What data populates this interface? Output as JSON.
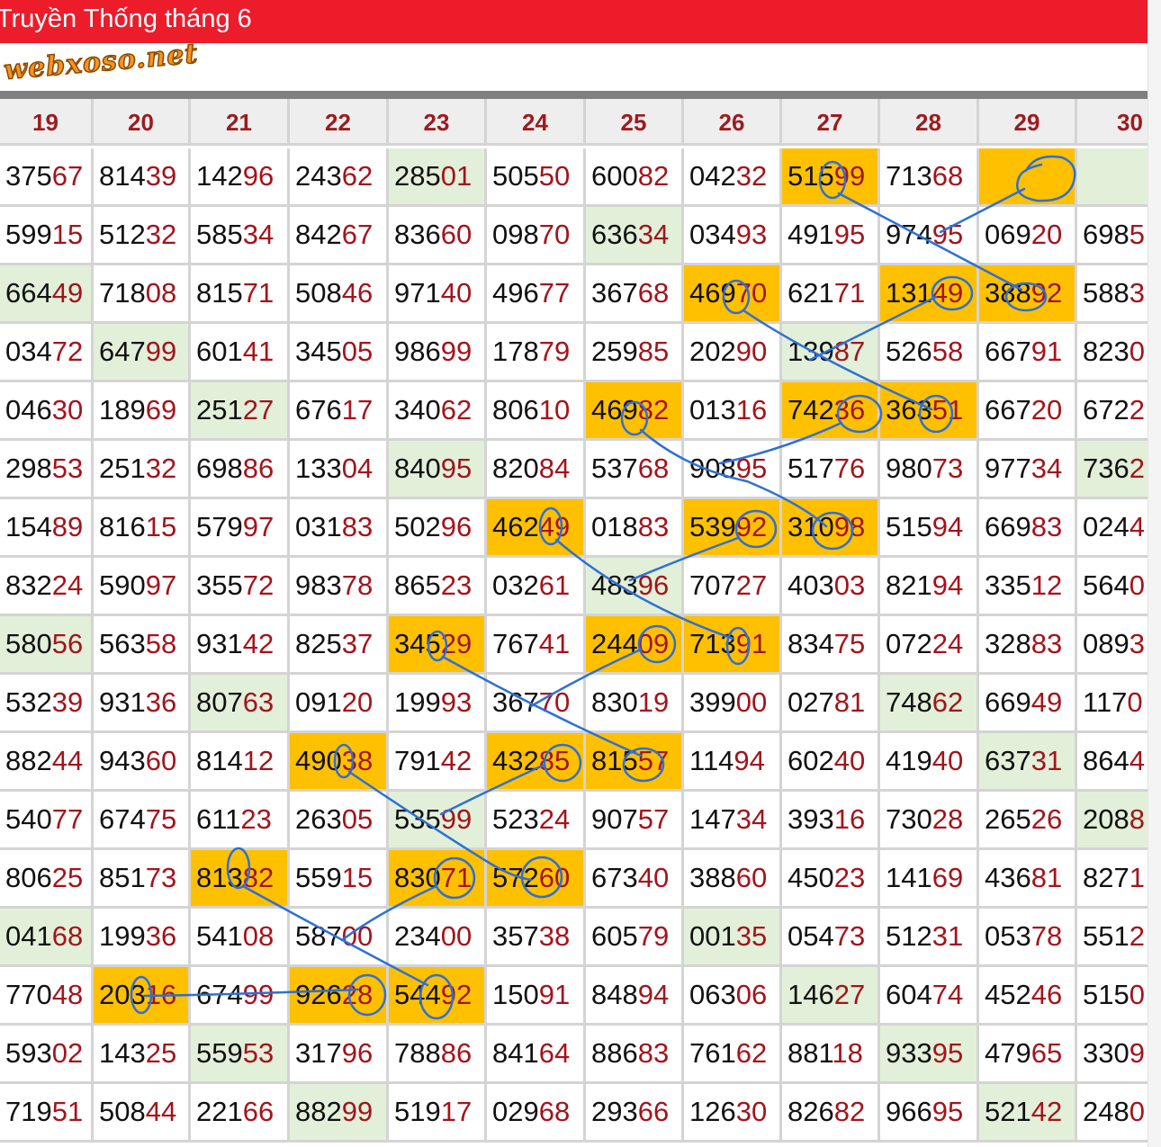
{
  "header": {
    "title": "Truyền Thống tháng 6",
    "watermark": "webxoso.net"
  },
  "colors": {
    "header_red": "#ec1c2b",
    "digit_red": "#a3141c",
    "highlight_orange": "#ffc000",
    "highlight_green": "#e2f0d9",
    "annotation_blue": "#2f6fd6"
  },
  "table": {
    "columns": [
      "19",
      "20",
      "21",
      "22",
      "23",
      "24",
      "25",
      "26",
      "27",
      "28",
      "29",
      "30"
    ],
    "rows": [
      [
        "37567",
        "81439",
        "14296",
        "24362",
        "28501",
        "50550",
        "60082",
        "04232",
        "51599",
        "71368",
        "",
        ""
      ],
      [
        "59915",
        "51232",
        "58534",
        "84267",
        "83660",
        "09870",
        "63634",
        "03493",
        "49195",
        "97495",
        "06920",
        "6985"
      ],
      [
        "66449",
        "71808",
        "81571",
        "50846",
        "97140",
        "49677",
        "36768",
        "46970",
        "62171",
        "13149",
        "38892",
        "5883"
      ],
      [
        "03472",
        "64799",
        "60141",
        "34505",
        "98699",
        "17879",
        "25985",
        "20290",
        "13987",
        "52658",
        "66791",
        "8230"
      ],
      [
        "04630",
        "18969",
        "25127",
        "67617",
        "34062",
        "80610",
        "46982",
        "01316",
        "74236",
        "36351",
        "66720",
        "6722"
      ],
      [
        "29853",
        "25132",
        "69886",
        "13304",
        "84095",
        "82084",
        "53768",
        "90895",
        "51776",
        "98073",
        "97734",
        "7362"
      ],
      [
        "15489",
        "81615",
        "57997",
        "03183",
        "50296",
        "46249",
        "01883",
        "53992",
        "31098",
        "51594",
        "66983",
        "0244"
      ],
      [
        "83224",
        "59097",
        "35572",
        "98378",
        "86523",
        "03261",
        "48396",
        "70727",
        "40303",
        "82194",
        "33512",
        "5640"
      ],
      [
        "58056",
        "56358",
        "93142",
        "82537",
        "34529",
        "76741",
        "24409",
        "71391",
        "83475",
        "07224",
        "32883",
        "0893"
      ],
      [
        "53239",
        "93136",
        "80763",
        "09120",
        "19993",
        "36770",
        "83019",
        "39900",
        "02781",
        "74862",
        "66949",
        "1170"
      ],
      [
        "88244",
        "94360",
        "81412",
        "49038",
        "79142",
        "43285",
        "81557",
        "11494",
        "60240",
        "41940",
        "63731",
        "8644"
      ],
      [
        "54077",
        "67475",
        "61123",
        "26305",
        "53599",
        "52324",
        "90757",
        "14734",
        "39316",
        "73028",
        "26526",
        "2088"
      ],
      [
        "80625",
        "85173",
        "81382",
        "55915",
        "83071",
        "57260",
        "67340",
        "38860",
        "45023",
        "14169",
        "43681",
        "8271"
      ],
      [
        "04168",
        "19936",
        "54108",
        "58700",
        "23400",
        "35738",
        "60579",
        "00135",
        "05473",
        "51231",
        "05378",
        "5512"
      ],
      [
        "77048",
        "20316",
        "67499",
        "92628",
        "54492",
        "15091",
        "84894",
        "06306",
        "14627",
        "60474",
        "45246",
        "5150"
      ],
      [
        "59302",
        "14325",
        "55953",
        "31796",
        "78886",
        "84164",
        "88683",
        "76162",
        "88118",
        "93395",
        "47965",
        "3309"
      ],
      [
        "71951",
        "50844",
        "22166",
        "88299",
        "51917",
        "02968",
        "29366",
        "12630",
        "82682",
        "96695",
        "52142",
        "2480"
      ]
    ],
    "highlights": [
      [
        "",
        "",
        "",
        "",
        "g",
        "",
        "",
        "",
        "o",
        "",
        "o",
        "g"
      ],
      [
        "",
        "",
        "",
        "",
        "",
        "",
        "g",
        "",
        "",
        "",
        "",
        ""
      ],
      [
        "g",
        "",
        "",
        "",
        "",
        "",
        "",
        "o",
        "",
        "o",
        "o",
        ""
      ],
      [
        "",
        "g",
        "",
        "",
        "",
        "",
        "",
        "",
        "g",
        "",
        "",
        ""
      ],
      [
        "",
        "",
        "g",
        "",
        "",
        "",
        "o",
        "",
        "o",
        "o",
        "",
        ""
      ],
      [
        "",
        "",
        "",
        "",
        "g",
        "",
        "",
        "",
        "",
        "",
        "",
        "g"
      ],
      [
        "",
        "",
        "",
        "",
        "",
        "o",
        "",
        "o",
        "o",
        "",
        "",
        ""
      ],
      [
        "",
        "",
        "",
        "",
        "",
        "",
        "g",
        "",
        "",
        "",
        "",
        ""
      ],
      [
        "g",
        "",
        "",
        "",
        "o",
        "",
        "o",
        "o",
        "",
        "",
        "",
        ""
      ],
      [
        "",
        "",
        "g",
        "",
        "",
        "",
        "",
        "",
        "",
        "g",
        "",
        ""
      ],
      [
        "",
        "",
        "",
        "o",
        "",
        "o",
        "o",
        "",
        "",
        "",
        "g",
        ""
      ],
      [
        "",
        "",
        "",
        "",
        "g",
        "",
        "",
        "",
        "",
        "",
        "",
        "g"
      ],
      [
        "",
        "",
        "o",
        "",
        "o",
        "o",
        "",
        "",
        "",
        "",
        "",
        ""
      ],
      [
        "g",
        "",
        "",
        "",
        "",
        "",
        "",
        "g",
        "",
        "",
        "",
        ""
      ],
      [
        "",
        "o",
        "",
        "o",
        "o",
        "",
        "",
        "",
        "g",
        "",
        "",
        ""
      ],
      [
        "",
        "",
        "g",
        "",
        "",
        "",
        "",
        "",
        "",
        "g",
        "",
        ""
      ],
      [
        "",
        "",
        "",
        "g",
        "",
        "",
        "",
        "",
        "",
        "",
        "g",
        ""
      ]
    ]
  }
}
